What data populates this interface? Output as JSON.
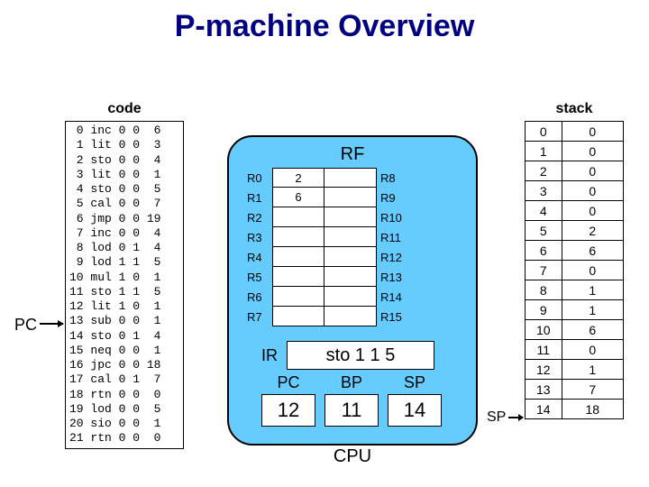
{
  "title": "P-machine Overview",
  "colors": {
    "title_color": "#000080",
    "cpu_bg": "#66ccff",
    "page_bg": "#ffffff",
    "border": "#000000"
  },
  "pc_pointer_label": "PC",
  "sp_pointer_label": "SP",
  "code": {
    "label": "code",
    "rows": [
      {
        "i": 0,
        "op": "inc",
        "a": 0,
        "b": 0,
        "c": 6
      },
      {
        "i": 1,
        "op": "lit",
        "a": 0,
        "b": 0,
        "c": 3
      },
      {
        "i": 2,
        "op": "sto",
        "a": 0,
        "b": 0,
        "c": 4
      },
      {
        "i": 3,
        "op": "lit",
        "a": 0,
        "b": 0,
        "c": 1
      },
      {
        "i": 4,
        "op": "sto",
        "a": 0,
        "b": 0,
        "c": 5
      },
      {
        "i": 5,
        "op": "cal",
        "a": 0,
        "b": 0,
        "c": 7
      },
      {
        "i": 6,
        "op": "jmp",
        "a": 0,
        "b": 0,
        "c": 19
      },
      {
        "i": 7,
        "op": "inc",
        "a": 0,
        "b": 0,
        "c": 4
      },
      {
        "i": 8,
        "op": "lod",
        "a": 0,
        "b": 1,
        "c": 4
      },
      {
        "i": 9,
        "op": "lod",
        "a": 1,
        "b": 1,
        "c": 5
      },
      {
        "i": 10,
        "op": "mul",
        "a": 1,
        "b": 0,
        "c": 1
      },
      {
        "i": 11,
        "op": "sto",
        "a": 1,
        "b": 1,
        "c": 5
      },
      {
        "i": 12,
        "op": "lit",
        "a": 1,
        "b": 0,
        "c": 1
      },
      {
        "i": 13,
        "op": "sub",
        "a": 0,
        "b": 0,
        "c": 1
      },
      {
        "i": 14,
        "op": "sto",
        "a": 0,
        "b": 1,
        "c": 4
      },
      {
        "i": 15,
        "op": "neq",
        "a": 0,
        "b": 0,
        "c": 1
      },
      {
        "i": 16,
        "op": "jpc",
        "a": 0,
        "b": 0,
        "c": 18
      },
      {
        "i": 17,
        "op": "cal",
        "a": 0,
        "b": 1,
        "c": 7
      },
      {
        "i": 18,
        "op": "rtn",
        "a": 0,
        "b": 0,
        "c": 0
      },
      {
        "i": 19,
        "op": "lod",
        "a": 0,
        "b": 0,
        "c": 5
      },
      {
        "i": 20,
        "op": "sio",
        "a": 0,
        "b": 0,
        "c": 1
      },
      {
        "i": 21,
        "op": "rtn",
        "a": 0,
        "b": 0,
        "c": 0
      }
    ]
  },
  "cpu": {
    "label": "CPU",
    "rf_label": "RF",
    "registers": {
      "left": [
        "R0",
        "R1",
        "R2",
        "R3",
        "R4",
        "R5",
        "R6",
        "R7"
      ],
      "right": [
        "R8",
        "R9",
        "R10",
        "R11",
        "R12",
        "R13",
        "R14",
        "R15"
      ],
      "values_left": [
        "2",
        "6",
        "",
        "",
        "",
        "",
        "",
        ""
      ],
      "values_right": [
        "",
        "",
        "",
        "",
        "",
        "",
        "",
        ""
      ]
    },
    "ir_label": "IR",
    "ir_value": "sto 1 1 5",
    "pc": {
      "label": "PC",
      "value": "12"
    },
    "bp": {
      "label": "BP",
      "value": "11"
    },
    "sp": {
      "label": "SP",
      "value": "14"
    }
  },
  "stack": {
    "label": "stack",
    "rows": [
      {
        "i": 0,
        "v": 0
      },
      {
        "i": 1,
        "v": 0
      },
      {
        "i": 2,
        "v": 0
      },
      {
        "i": 3,
        "v": 0
      },
      {
        "i": 4,
        "v": 0
      },
      {
        "i": 5,
        "v": 2
      },
      {
        "i": 6,
        "v": 6
      },
      {
        "i": 7,
        "v": 0
      },
      {
        "i": 8,
        "v": 1
      },
      {
        "i": 9,
        "v": 1
      },
      {
        "i": 10,
        "v": 6
      },
      {
        "i": 11,
        "v": 0
      },
      {
        "i": 12,
        "v": 1
      },
      {
        "i": 13,
        "v": 7
      },
      {
        "i": 14,
        "v": 18
      }
    ]
  }
}
